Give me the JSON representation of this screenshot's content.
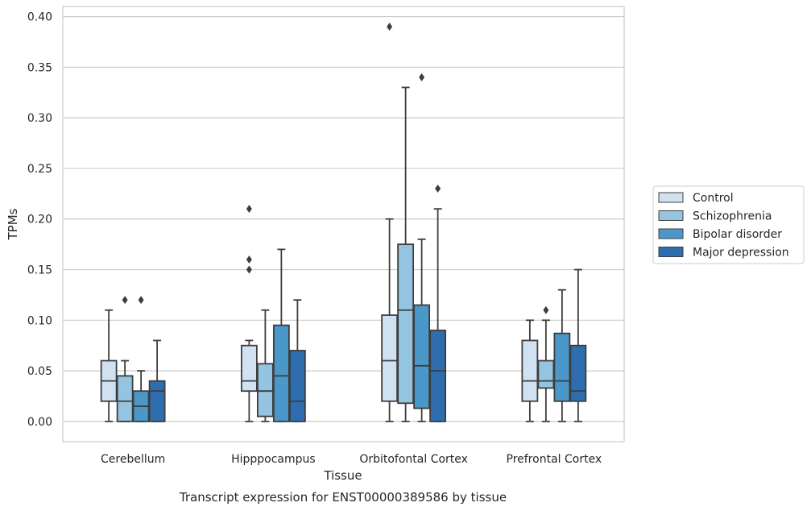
{
  "chart_data": {
    "type": "box",
    "xlabel": "Tissue",
    "ylabel": "TPMs",
    "caption": "Transcript expression for ENST00000389586 by tissue",
    "ylim": [
      -0.02,
      0.41
    ],
    "yticks": [
      0.0,
      0.05,
      0.1,
      0.15,
      0.2,
      0.25,
      0.3,
      0.35,
      0.4
    ],
    "ytick_labels": [
      "0.00",
      "0.05",
      "0.10",
      "0.15",
      "0.20",
      "0.25",
      "0.30",
      "0.35",
      "0.40"
    ],
    "grid": "horizontal",
    "legend_position": "right",
    "categories": [
      "Cerebellum",
      "Hipppocampus",
      "Orbitofontal Cortex",
      "Prefrontal Cortex"
    ],
    "series": [
      {
        "name": "Control",
        "color": "#d0e1f2",
        "boxes": [
          {
            "whislo": 0.0,
            "q1": 0.02,
            "med": 0.04,
            "q3": 0.06,
            "whishi": 0.11,
            "fliers": []
          },
          {
            "whislo": 0.0,
            "q1": 0.03,
            "med": 0.04,
            "q3": 0.075,
            "whishi": 0.08,
            "fliers": [
              0.15,
              0.16,
              0.21
            ]
          },
          {
            "whislo": 0.0,
            "q1": 0.02,
            "med": 0.06,
            "q3": 0.105,
            "whishi": 0.2,
            "fliers": [
              0.39
            ]
          },
          {
            "whislo": 0.0,
            "q1": 0.02,
            "med": 0.04,
            "q3": 0.08,
            "whishi": 0.1,
            "fliers": []
          }
        ]
      },
      {
        "name": "Schizophrenia",
        "color": "#94c4df",
        "boxes": [
          {
            "whislo": 0.0,
            "q1": 0.0,
            "med": 0.02,
            "q3": 0.045,
            "whishi": 0.06,
            "fliers": [
              0.12
            ]
          },
          {
            "whislo": 0.0,
            "q1": 0.005,
            "med": 0.03,
            "q3": 0.057,
            "whishi": 0.11,
            "fliers": []
          },
          {
            "whislo": 0.0,
            "q1": 0.018,
            "med": 0.11,
            "q3": 0.175,
            "whishi": 0.33,
            "fliers": []
          },
          {
            "whislo": 0.0,
            "q1": 0.033,
            "med": 0.04,
            "q3": 0.06,
            "whishi": 0.1,
            "fliers": [
              0.11
            ]
          }
        ]
      },
      {
        "name": "Bipolar disorder",
        "color": "#4a98c9",
        "boxes": [
          {
            "whislo": 0.0,
            "q1": 0.0,
            "med": 0.015,
            "q3": 0.03,
            "whishi": 0.05,
            "fliers": [
              0.12
            ]
          },
          {
            "whislo": 0.0,
            "q1": 0.0,
            "med": 0.045,
            "q3": 0.095,
            "whishi": 0.17,
            "fliers": []
          },
          {
            "whislo": 0.0,
            "q1": 0.013,
            "med": 0.055,
            "q3": 0.115,
            "whishi": 0.18,
            "fliers": [
              0.34
            ]
          },
          {
            "whislo": 0.0,
            "q1": 0.02,
            "med": 0.04,
            "q3": 0.087,
            "whishi": 0.13,
            "fliers": []
          }
        ]
      },
      {
        "name": "Major depression",
        "color": "#2e6eae",
        "boxes": [
          {
            "whislo": 0.0,
            "q1": 0.0,
            "med": 0.03,
            "q3": 0.04,
            "whishi": 0.08,
            "fliers": []
          },
          {
            "whislo": 0.0,
            "q1": 0.0,
            "med": 0.02,
            "q3": 0.07,
            "whishi": 0.12,
            "fliers": []
          },
          {
            "whislo": 0.0,
            "q1": 0.0,
            "med": 0.05,
            "q3": 0.09,
            "whishi": 0.21,
            "fliers": [
              0.23
            ]
          },
          {
            "whislo": 0.0,
            "q1": 0.02,
            "med": 0.03,
            "q3": 0.075,
            "whishi": 0.15,
            "fliers": []
          }
        ]
      }
    ]
  }
}
